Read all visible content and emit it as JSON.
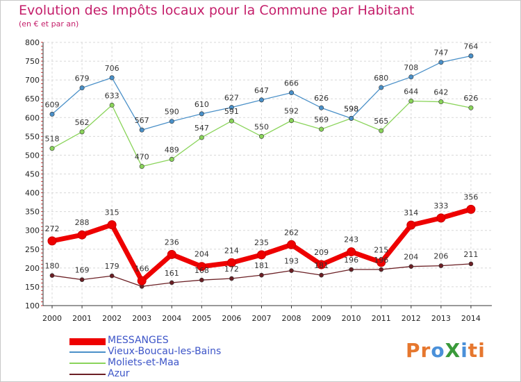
{
  "header": {
    "title": "Evolution des Impôts locaux pour la Commune par Habitant",
    "subtitle": "(en € et par an)"
  },
  "logo": {
    "text": "ProXiti",
    "colors": [
      "#e6772e",
      "#e6772e",
      "#4a90d9",
      "#3a9a3a",
      "#4a90d9",
      "#e6772e",
      "#e6772e"
    ]
  },
  "chart_data": {
    "type": "line",
    "x": [
      "2000",
      "2001",
      "2002",
      "2003",
      "2004",
      "2005",
      "2006",
      "2007",
      "2008",
      "2009",
      "2010",
      "2011",
      "2012",
      "2013",
      "2014"
    ],
    "ylim": [
      100,
      800
    ],
    "yticks": [
      100,
      150,
      200,
      250,
      300,
      350,
      400,
      450,
      500,
      550,
      600,
      650,
      700,
      750,
      800
    ],
    "grid": true,
    "legend_position": "bottom-left",
    "series": [
      {
        "name": "MESSANGES",
        "color": "#ee0000",
        "values": [
          272,
          288,
          315,
          166,
          236,
          204,
          214,
          235,
          262,
          209,
          243,
          215,
          314,
          333,
          356
        ]
      },
      {
        "name": "Vieux-Boucau-les-Bains",
        "color": "#4a90c8",
        "values": [
          609,
          679,
          706,
          567,
          590,
          610,
          627,
          647,
          666,
          626,
          598,
          680,
          708,
          747,
          764
        ]
      },
      {
        "name": "Moliets-et-Maa",
        "color": "#8ad45a",
        "values": [
          518,
          562,
          633,
          470,
          489,
          547,
          591,
          550,
          592,
          569,
          598,
          565,
          644,
          642,
          626
        ]
      },
      {
        "name": "Azur",
        "color": "#6b1f24",
        "values": [
          180,
          169,
          179,
          151,
          161,
          168,
          172,
          181,
          193,
          181,
          196,
          196,
          204,
          206,
          211
        ]
      }
    ],
    "labels": [
      [
        "272",
        "288",
        "315",
        "166",
        "236",
        "204",
        "214",
        "235",
        "262",
        "209",
        "243",
        "215",
        "314",
        "333",
        "356"
      ],
      [
        "609",
        "679",
        "706",
        "567",
        "590",
        "610",
        "627",
        "647",
        "666",
        "626",
        "598",
        "680",
        "708",
        "747",
        "764"
      ],
      [
        "518",
        "562",
        "633",
        "470",
        "489",
        "547",
        "591",
        "550",
        "592",
        "569",
        "598",
        "565",
        "644",
        "642",
        "626"
      ],
      [
        "180",
        "169",
        "179",
        "",
        "161",
        "168",
        "172",
        "181",
        "193",
        "181",
        "196",
        "196",
        "204",
        "206",
        "211"
      ]
    ]
  }
}
